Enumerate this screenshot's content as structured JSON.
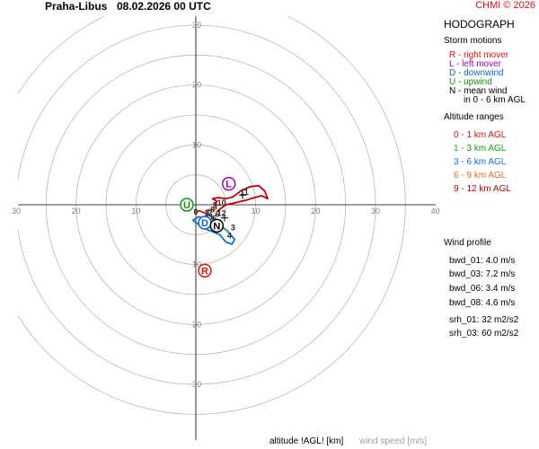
{
  "header": {
    "station": "Praha-Libus",
    "time": "08.02.2026 00 UTC",
    "credit": "CHMI © 2026"
  },
  "legend": {
    "title": "HODOGRAPH",
    "storm_title": "Storm motions",
    "storm_items": [
      {
        "text": "R - right mover",
        "color": "#e01010"
      },
      {
        "text": "L - left mover",
        "color": "#a000c0"
      },
      {
        "text": "D - downwind",
        "color": "#1060d0"
      },
      {
        "text": "U - upwind",
        "color": "#109010"
      },
      {
        "text": "N - mean wind",
        "color": "#000000"
      },
      {
        "text": "in 0 - 6 km AGL",
        "color": "#000000"
      }
    ],
    "alt_title": "Altitude ranges",
    "alt_items": [
      {
        "text": "0 - 1 km AGL",
        "color": "#e01010"
      },
      {
        "text": "1 - 3 km AGL",
        "color": "#10a010"
      },
      {
        "text": "3 - 6 km AGL",
        "color": "#1070e0"
      },
      {
        "text": "6 - 9 km AGL",
        "color": "#e07020"
      },
      {
        "text": "9 - 12 km AGL",
        "color": "#c00000"
      }
    ],
    "wind_profile_title": "Wind profile",
    "wind_profile": [
      "bwd_01: 4.0 m/s",
      "bwd_03: 7.2 m/s",
      "bwd_06: 3.4 m/s",
      "bwd_08: 4.6 m/s",
      "srh_01: 32 m2/s2",
      "srh_03: 60 m2/s2"
    ]
  },
  "footer": {
    "altitude_label": "altitude !AGL! [km]",
    "wind_speed_label": "wind speed [m/s]"
  },
  "chart_data": {
    "type": "hodograph",
    "rings": [
      5,
      10,
      15,
      20,
      25,
      30,
      35
    ],
    "axis_tick_labels": [
      "10",
      "20",
      "30",
      "40"
    ],
    "range": [
      -30,
      40
    ],
    "storm_markers": [
      {
        "label": "R",
        "u": 1.5,
        "v": -11.0,
        "color": "#e01010"
      },
      {
        "label": "L",
        "u": 5.5,
        "v": 3.5,
        "color": "#a000c0"
      },
      {
        "label": "D",
        "u": 1.5,
        "v": -3.0,
        "color": "#1060d0"
      },
      {
        "label": "U",
        "u": -1.5,
        "v": 0.0,
        "color": "#109010"
      },
      {
        "label": "N",
        "u": 3.5,
        "v": -3.5,
        "color": "#000000"
      }
    ],
    "series": [
      {
        "name": "0 - 1 km AGL",
        "color": "#e01010",
        "points": [
          [
            0.0,
            -1.2
          ],
          [
            0.6,
            -1.0
          ],
          [
            1.3,
            -1.3
          ],
          [
            2.0,
            -1.6
          ],
          [
            2.6,
            -2.0
          ]
        ]
      },
      {
        "name": "1 - 3 km AGL",
        "color": "#10a010",
        "points": [
          [
            2.6,
            -2.0
          ],
          [
            3.2,
            -2.6
          ],
          [
            4.0,
            -3.4
          ],
          [
            4.8,
            -4.0
          ],
          [
            5.2,
            -4.3
          ]
        ]
      },
      {
        "name": "3 - 6 km AGL",
        "color": "#1070e0",
        "points": [
          [
            5.2,
            -4.3
          ],
          [
            5.8,
            -5.0
          ],
          [
            6.5,
            -5.8
          ],
          [
            6.0,
            -6.6
          ],
          [
            5.0,
            -6.2
          ],
          [
            4.0,
            -5.0
          ],
          [
            2.8,
            -4.5
          ],
          [
            1.5,
            -4.0
          ],
          [
            0.3,
            -3.2
          ],
          [
            -0.5,
            -2.6
          ],
          [
            0.5,
            -2.0
          ],
          [
            1.5,
            -2.3
          ],
          [
            2.2,
            -1.6
          ],
          [
            1.6,
            -1.0
          ]
        ]
      },
      {
        "name": "6 - 9 km AGL",
        "color": "#e07020",
        "points": [
          [
            1.6,
            -1.0
          ],
          [
            2.2,
            -0.8
          ],
          [
            3.0,
            -0.9
          ],
          [
            3.5,
            -0.6
          ],
          [
            3.2,
            -0.1
          ]
        ]
      },
      {
        "name": "9 - 12 km AGL",
        "color": "#c00000",
        "points": [
          [
            3.2,
            -0.1
          ],
          [
            3.5,
            0.6
          ],
          [
            2.8,
            1.0
          ],
          [
            3.8,
            1.2
          ],
          [
            5.0,
            1.0
          ],
          [
            6.2,
            1.3
          ],
          [
            7.5,
            2.3
          ],
          [
            9.0,
            3.0
          ],
          [
            10.5,
            3.2
          ],
          [
            11.5,
            2.3
          ],
          [
            12.0,
            1.0
          ],
          [
            11.0,
            1.5
          ],
          [
            9.8,
            1.2
          ],
          [
            8.5,
            0.8
          ],
          [
            7.2,
            0.5
          ],
          [
            6.0,
            0.2
          ],
          [
            5.0,
            0.0
          ],
          [
            4.2,
            -0.6
          ],
          [
            3.6,
            -1.1
          ]
        ]
      }
    ],
    "height_labels": [
      {
        "label": "0",
        "u": 0.0,
        "v": -1.2
      },
      {
        "label": "1",
        "u": 2.6,
        "v": -2.0
      },
      {
        "label": "2",
        "u": 1.9,
        "v": -1.4
      },
      {
        "label": "3",
        "u": 6.2,
        "v": -3.8
      },
      {
        "label": "4",
        "u": 5.6,
        "v": -5.2
      },
      {
        "label": "5",
        "u": 3.1,
        "v": -2.3
      },
      {
        "label": "6",
        "u": 3.6,
        "v": -1.6
      },
      {
        "label": "7",
        "u": 2.4,
        "v": -1.4
      },
      {
        "label": "8",
        "u": 2.8,
        "v": -0.8
      },
      {
        "label": "9",
        "u": 3.2,
        "v": -0.1
      },
      {
        "label": "10",
        "u": 4.3,
        "v": 0.3
      },
      {
        "label": "11",
        "u": 8.1,
        "v": 2.1
      },
      {
        "label": "12",
        "u": 4.3,
        "v": -1.4
      }
    ]
  }
}
